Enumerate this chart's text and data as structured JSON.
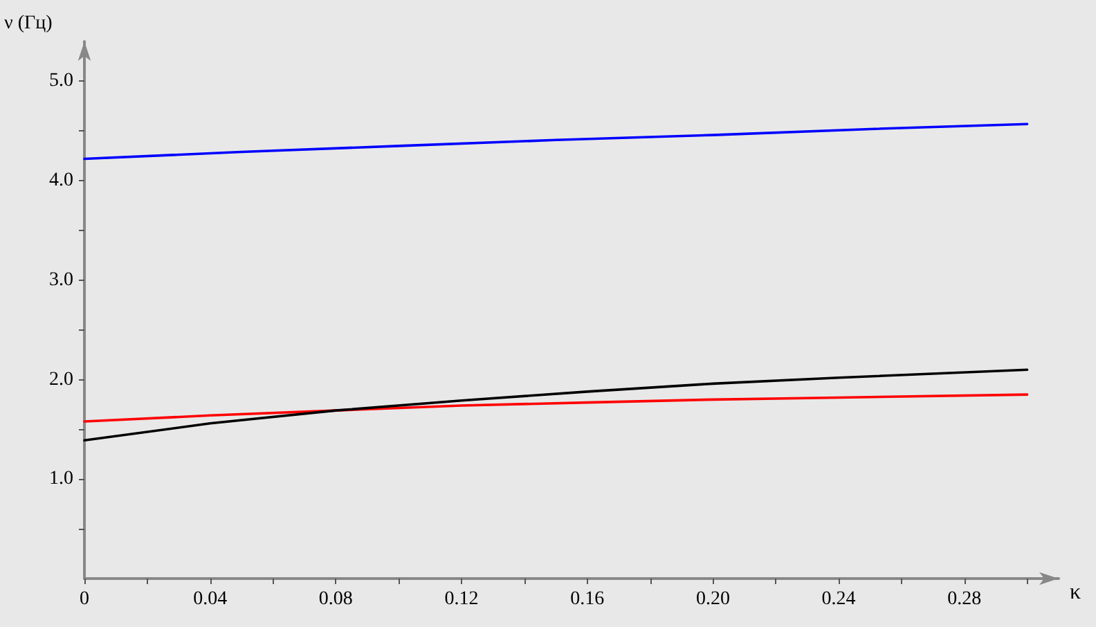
{
  "chart_data": {
    "type": "line",
    "xlabel": "κ",
    "ylabel": "ν (Гц)",
    "xlim": [
      0,
      0.31
    ],
    "ylim": [
      0,
      5.4
    ],
    "xticks": [
      0,
      {
        "value": 0.02,
        "label": null
      },
      {
        "value": 0.04,
        "label": "0.04"
      },
      {
        "value": 0.06,
        "label": null
      },
      {
        "value": 0.08,
        "label": "0.08"
      },
      {
        "value": 0.1,
        "label": null
      },
      {
        "value": 0.12,
        "label": "0.12"
      },
      {
        "value": 0.14,
        "label": null
      },
      {
        "value": 0.16,
        "label": "0.16"
      },
      {
        "value": 0.18,
        "label": null
      },
      {
        "value": 0.2,
        "label": "0.20"
      },
      {
        "value": 0.22,
        "label": null
      },
      {
        "value": 0.24,
        "label": "0.24"
      },
      {
        "value": 0.26,
        "label": null
      },
      {
        "value": 0.28,
        "label": "0.28"
      },
      {
        "value": 0.3,
        "label": null
      }
    ],
    "yticks": [
      {
        "value": 0.5,
        "label": null
      },
      {
        "value": 1,
        "label": "1.0"
      },
      {
        "value": 1.5,
        "label": null
      },
      {
        "value": 2,
        "label": "2.0"
      },
      {
        "value": 2.5,
        "label": null
      },
      {
        "value": 3,
        "label": "3.0"
      },
      {
        "value": 3.5,
        "label": null
      },
      {
        "value": 4,
        "label": "4.0"
      },
      {
        "value": 4.5,
        "label": null
      },
      {
        "value": 5,
        "label": "5.0"
      }
    ],
    "marker": "none",
    "line_style": "solid",
    "series": [
      {
        "color": "#0000ff",
        "x": [
          0,
          0.05,
          0.1,
          0.15,
          0.2,
          0.25,
          0.3
        ],
        "values": [
          4.22,
          4.29,
          4.35,
          4.41,
          4.46,
          4.52,
          4.57
        ]
      },
      {
        "color": "#ff0000",
        "x": [
          0,
          0.04,
          0.08,
          0.12,
          0.16,
          0.2,
          0.24,
          0.3
        ],
        "values": [
          1.58,
          1.64,
          1.69,
          1.74,
          1.77,
          1.8,
          1.82,
          1.85
        ]
      },
      {
        "color": "#000000",
        "x": [
          0,
          0.04,
          0.08,
          0.12,
          0.16,
          0.2,
          0.24,
          0.3
        ],
        "values": [
          1.39,
          1.56,
          1.69,
          1.79,
          1.88,
          1.96,
          2.02,
          2.1
        ]
      }
    ]
  }
}
